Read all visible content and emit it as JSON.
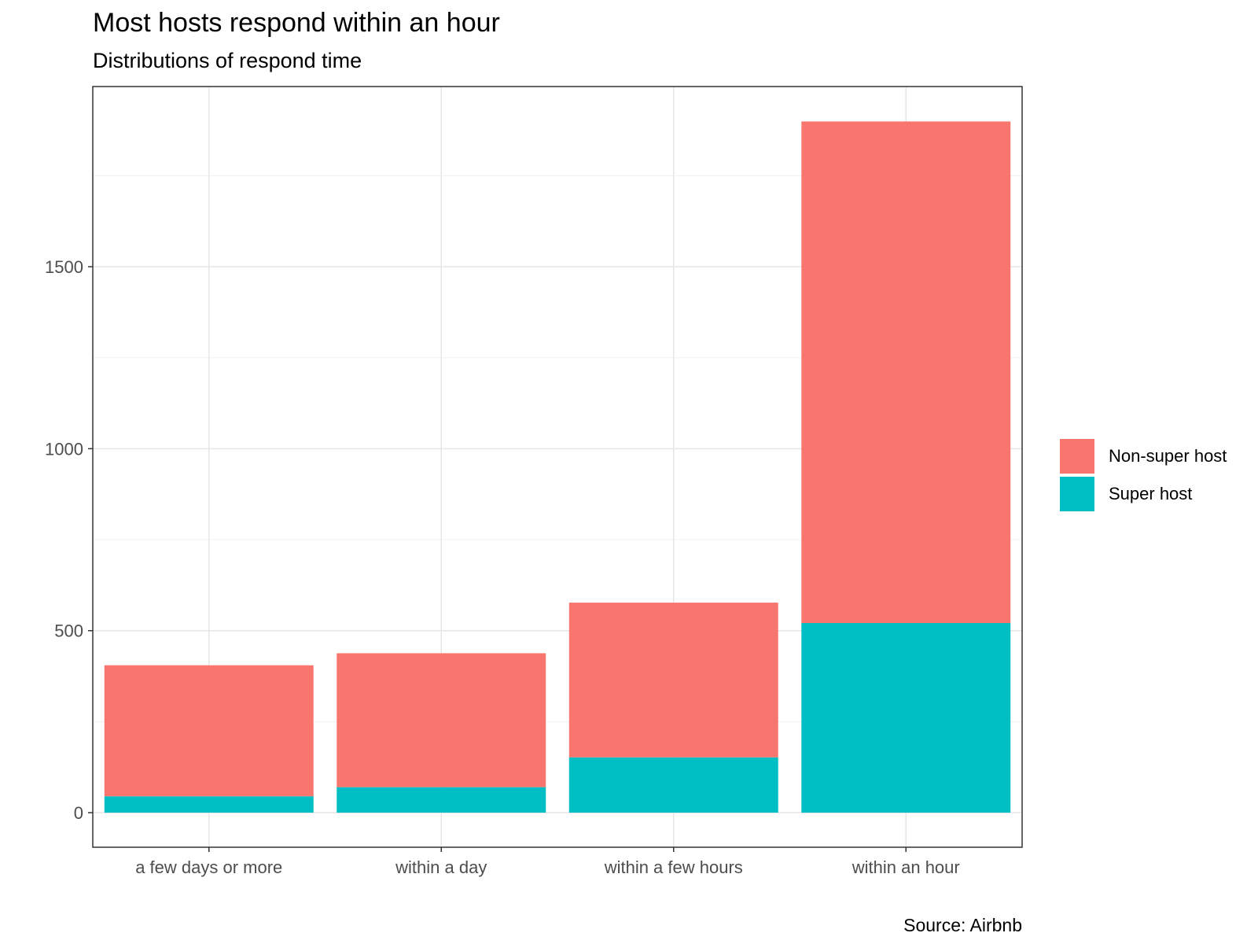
{
  "chart_data": {
    "type": "bar",
    "stacked": true,
    "title": "Most hosts respond within an hour",
    "subtitle": "Distributions of respond time",
    "caption": "Source: Airbnb",
    "xlabel": "",
    "ylabel": "",
    "categories": [
      "a few days or more",
      "within a day",
      "within a few hours",
      "within an hour"
    ],
    "series": [
      {
        "name": "Super host",
        "color": "#00BFC4",
        "values": [
          45,
          70,
          152,
          521
        ]
      },
      {
        "name": "Non-super host",
        "color": "#F8766D",
        "values": [
          360,
          368,
          425,
          1378
        ]
      }
    ],
    "yticks": [
      0,
      500,
      1000,
      1500
    ],
    "ylim": [
      -95,
      1995
    ],
    "grid": true,
    "legend_position": "right",
    "legend_order": [
      "Non-super host",
      "Super host"
    ]
  }
}
